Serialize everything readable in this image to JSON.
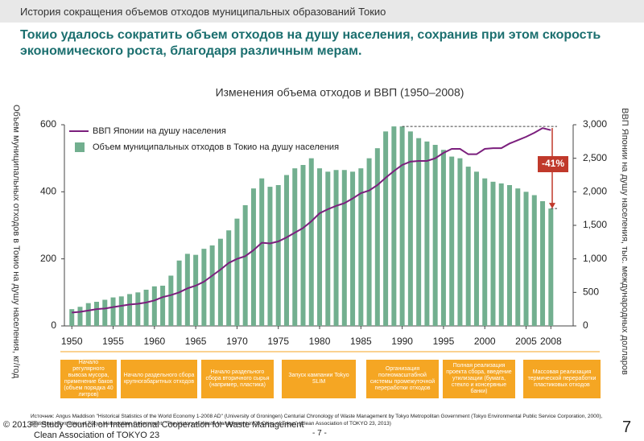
{
  "header": {
    "title": "История сокращения объемов отходов муниципальных образований Токио",
    "headline": "Токио удалось сократить объем отходов на душу населения, сохранив при этом скорость экономического роста, благодаря различным мерам."
  },
  "chart_data": {
    "type": "bar",
    "title": "Изменения объема отходов и ВВП (1950–2008)",
    "y_label": "Объем муниципальных отходов в Токио на душу населения, кг/год",
    "y2_label": "ВВП Японии на душу населения, тыс. международных долларов",
    "annotation": "-41%",
    "x": [
      1950,
      1951,
      1952,
      1953,
      1954,
      1955,
      1956,
      1957,
      1958,
      1959,
      1960,
      1961,
      1962,
      1963,
      1964,
      1965,
      1966,
      1967,
      1968,
      1969,
      1970,
      1971,
      1972,
      1973,
      1974,
      1975,
      1976,
      1977,
      1978,
      1979,
      1980,
      1981,
      1982,
      1983,
      1984,
      1985,
      1986,
      1987,
      1988,
      1989,
      1990,
      1991,
      1992,
      1993,
      1994,
      1995,
      1996,
      1997,
      1998,
      1999,
      2000,
      2001,
      2002,
      2003,
      2004,
      2005,
      2006,
      2007,
      2008
    ],
    "xlim": [
      1949.1,
      2010.7
    ],
    "xticks": [
      1950,
      1955,
      1960,
      1965,
      1970,
      1975,
      1980,
      1985,
      1990,
      1995,
      2000,
      2005,
      2008
    ],
    "ylim": [
      0,
      600
    ],
    "yticks": [
      0,
      200,
      400,
      600
    ],
    "y2lim": [
      0,
      3000
    ],
    "y2ticks": [
      0,
      500,
      {
        "value": 1000,
        "label": "1,000"
      },
      {
        "value": 1500,
        "label": "1,500"
      },
      {
        "value": 2000,
        "label": "2,000"
      },
      {
        "value": 2500,
        "label": "2,500"
      },
      {
        "value": 3000,
        "label": "3,000"
      }
    ],
    "legend": "upper left",
    "series": [
      {
        "name": "ВВП Японии на душу населения",
        "type": "line",
        "axis": "y2",
        "color": "#7b1f7d",
        "values": [
          200,
          210,
          230,
          250,
          260,
          280,
          300,
          320,
          330,
          350,
          380,
          430,
          460,
          500,
          560,
          600,
          660,
          750,
          840,
          940,
          1000,
          1040,
          1130,
          1240,
          1230,
          1260,
          1320,
          1390,
          1460,
          1560,
          1680,
          1740,
          1790,
          1830,
          1900,
          1980,
          2020,
          2100,
          2210,
          2310,
          2400,
          2450,
          2460,
          2460,
          2500,
          2580,
          2640,
          2640,
          2560,
          2560,
          2640,
          2650,
          2650,
          2720,
          2770,
          2820,
          2880,
          2950,
          2920
        ]
      },
      {
        "name": "Объем муниципальных отходов в Токио на душу населения",
        "type": "bar",
        "color": "#72af8f",
        "values": [
          50,
          57,
          68,
          72,
          78,
          85,
          88,
          95,
          100,
          108,
          118,
          120,
          150,
          195,
          215,
          212,
          230,
          240,
          260,
          285,
          320,
          360,
          410,
          440,
          415,
          420,
          450,
          470,
          480,
          500,
          470,
          460,
          465,
          465,
          460,
          470,
          500,
          530,
          580,
          595,
          595,
          580,
          560,
          550,
          540,
          525,
          505,
          500,
          475,
          460,
          440,
          430,
          425,
          420,
          410,
          400,
          390,
          372,
          350
        ]
      }
    ],
    "events": [
      "Начало регулярного вывоза мусора, применение баков (объем порядка 40 литров)",
      "Начало раздельного сбора крупногабаритных отходов",
      "Начало раздельного сбора вторичного сырья (например, пластика)",
      "Запуск кампании Tokyo SLIM",
      "Организация полномасштабной системы промежуточной переработки отходов",
      "Полная реализация проекта сбора, введение утилизации (бумага, стекло и консервные банки)",
      "Массовая реализация термической переработки пластиковых отходов"
    ]
  },
  "footer": {
    "source": "Источник: Angus Maddison \"Historical Statistics of the World Economy 1-2008 AD\" (University of Groningen) Centurial Chronology of Waste Management by Tokyo Metropolitan Government (Tokyo Environmental Public Service Corporation, 2000), Statistical Information of Tokyo Metropolitan Government, \"The History of Waste Management in 23 Cities of Tokyo\" (Clean Association of TOKYO 23, 2013)",
    "copyright": "© 2013© Study Council on International Cooperation for Waste Management",
    "org": "Clean Association of TOKYO 23",
    "page_center": "- 7 -",
    "page_number": "7"
  }
}
